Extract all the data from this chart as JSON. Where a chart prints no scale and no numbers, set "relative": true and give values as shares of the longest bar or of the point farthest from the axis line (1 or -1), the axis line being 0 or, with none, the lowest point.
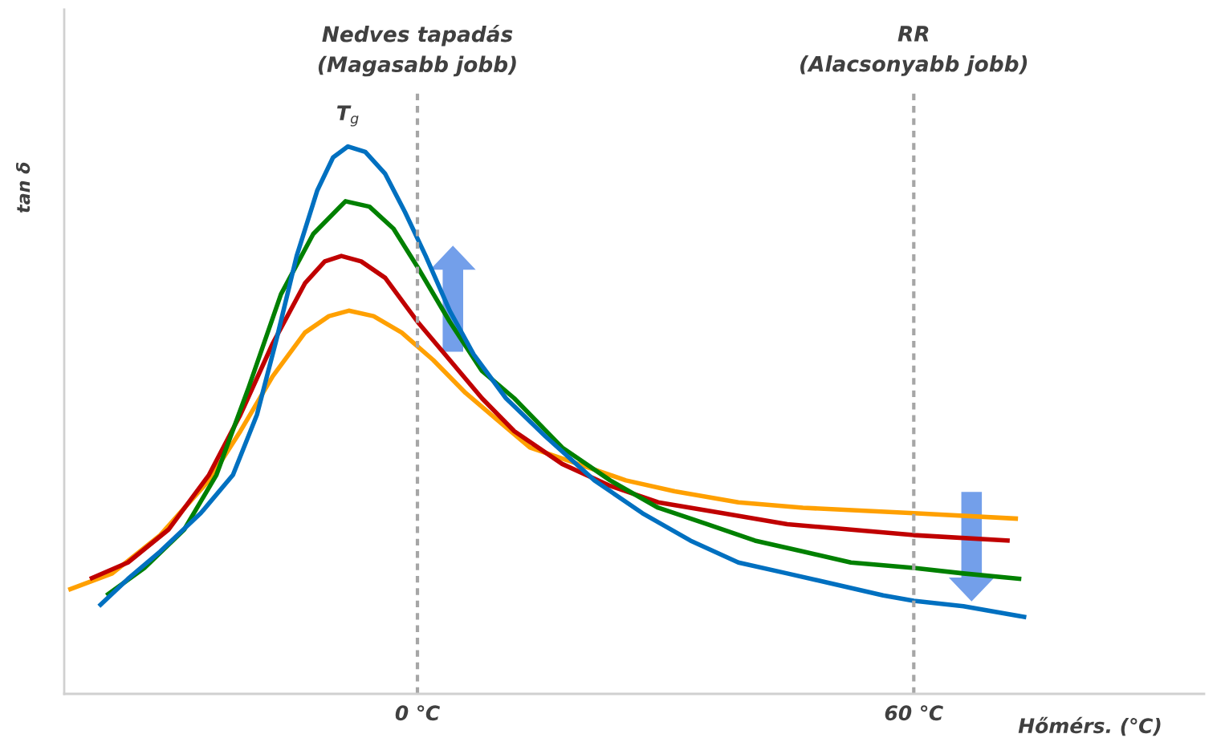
{
  "chart_data": {
    "type": "line",
    "relative": true,
    "xlabel": "Hőmérs. (℃)",
    "ylabel": "tan δ",
    "xlim": [
      -42.7,
      95.1
    ],
    "xticks": [
      {
        "value": 0,
        "label": "0 ℃"
      },
      {
        "value": 60,
        "label": "60 ℃"
      }
    ],
    "grid": false,
    "legend": false,
    "marker": "none",
    "line_style": "solid",
    "ref_lines": [
      {
        "axis": "x",
        "value": 0,
        "label": "Nedves tapadás\n(Magasabb jobb)",
        "color": "#a6a6a6",
        "line_style": "dashed"
      },
      {
        "axis": "x",
        "value": 60,
        "label": "RR\n(Alacsonyabb jobb)",
        "color": "#a6a6a6",
        "line_style": "dashed"
      }
    ],
    "annotations": [
      {
        "text": "T$_{g}$",
        "x": -8.4,
        "y": 1.0
      }
    ],
    "series": [
      {
        "color": "#ffa000",
        "x": [
          -42.2,
          -36.9,
          -31.1,
          -25.2,
          -21.4,
          -17.5,
          -13.6,
          -10.7,
          -8.3,
          -5.3,
          -1.9,
          1.9,
          5.8,
          9.7,
          13.6,
          19.4,
          25.2,
          31.1,
          38.8,
          46.6,
          60,
          72.6
        ],
        "values": [
          0.19,
          0.22,
          0.29,
          0.39,
          0.48,
          0.58,
          0.66,
          0.69,
          0.7,
          0.69,
          0.66,
          0.61,
          0.55,
          0.5,
          0.45,
          0.42,
          0.39,
          0.37,
          0.35,
          0.34,
          0.33,
          0.32
        ]
      },
      {
        "color": "#c00000",
        "x": [
          -39.6,
          -35.0,
          -30.1,
          -25.2,
          -21.4,
          -17.5,
          -13.6,
          -11.2,
          -9.2,
          -6.8,
          -3.9,
          0,
          3.9,
          7.8,
          11.7,
          17.5,
          23.3,
          29.1,
          36.9,
          44.7,
          52.4,
          60,
          71.6
        ],
        "values": [
          0.21,
          0.24,
          0.3,
          0.4,
          0.51,
          0.64,
          0.75,
          0.79,
          0.8,
          0.79,
          0.76,
          0.68,
          0.61,
          0.54,
          0.48,
          0.42,
          0.38,
          0.35,
          0.33,
          0.31,
          0.3,
          0.29,
          0.28
        ]
      },
      {
        "color": "#008000",
        "x": [
          -37.6,
          -33.0,
          -28.2,
          -24.3,
          -20.4,
          -16.5,
          -12.6,
          -8.7,
          -5.8,
          -2.9,
          0,
          3.9,
          7.8,
          11.7,
          17.5,
          23.3,
          29.1,
          35.0,
          40.8,
          46.6,
          52.4,
          60,
          66.0,
          73.0
        ],
        "values": [
          0.18,
          0.23,
          0.3,
          0.4,
          0.56,
          0.73,
          0.84,
          0.9,
          0.89,
          0.85,
          0.78,
          0.68,
          0.59,
          0.54,
          0.45,
          0.39,
          0.34,
          0.31,
          0.28,
          0.26,
          0.24,
          0.23,
          0.22,
          0.21
        ]
      },
      {
        "color": "#0070c0",
        "x": [
          -38.5,
          -35.0,
          -31.1,
          -26.2,
          -22.3,
          -19.4,
          -17.0,
          -14.6,
          -12.1,
          -10.2,
          -8.4,
          -6.3,
          -3.9,
          -1.5,
          1.0,
          3.9,
          6.8,
          10.7,
          15.5,
          21.4,
          27.2,
          33.0,
          38.8,
          44.7,
          50.5,
          56.3,
          60,
          66.0,
          73.6
        ],
        "values": [
          0.16,
          0.21,
          0.26,
          0.33,
          0.4,
          0.51,
          0.65,
          0.8,
          0.92,
          0.98,
          1.0,
          0.99,
          0.95,
          0.88,
          0.8,
          0.7,
          0.62,
          0.54,
          0.47,
          0.39,
          0.33,
          0.28,
          0.24,
          0.22,
          0.2,
          0.18,
          0.17,
          0.16,
          0.14
        ]
      }
    ]
  }
}
